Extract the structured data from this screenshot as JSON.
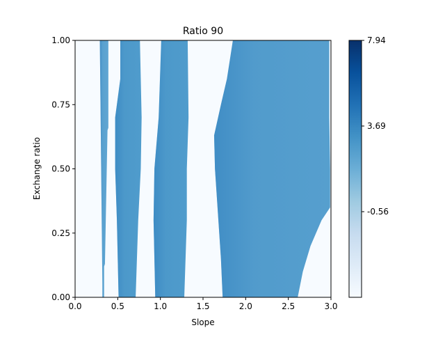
{
  "chart_data": {
    "type": "heatmap",
    "title": "Ratio 90",
    "xlabel": "Slope",
    "ylabel": "Exchange ratio",
    "xlim": [
      0.0,
      3.0
    ],
    "ylim": [
      0.0,
      1.0
    ],
    "xticks": [
      "0.0",
      "0.5",
      "1.0",
      "1.5",
      "2.0",
      "2.5",
      "3.0"
    ],
    "yticks": [
      "0.00",
      "0.25",
      "0.50",
      "0.75",
      "1.00"
    ],
    "colorbar": {
      "min": -4.81,
      "max": 7.94,
      "ticks": [
        "7.94",
        "3.69",
        "-0.56"
      ],
      "tick_values": [
        7.94,
        3.69,
        -0.56
      ],
      "colormap": "Blues"
    },
    "regions": [
      {
        "left_edge": [
          [
            0.0,
            0.32
          ],
          [
            0.05,
            0.32
          ],
          [
            1.0,
            0.29
          ]
        ],
        "right_edge": [
          [
            0.0,
            0.34
          ],
          [
            0.12,
            0.34
          ],
          [
            0.13,
            0.35
          ],
          [
            0.65,
            0.38
          ],
          [
            0.66,
            0.39
          ],
          [
            1.0,
            0.39
          ]
        ],
        "value": 2.0
      },
      {
        "left_edge": [
          [
            0.0,
            0.51
          ],
          [
            0.3,
            0.49
          ],
          [
            0.5,
            0.47
          ],
          [
            0.7,
            0.47
          ],
          [
            0.85,
            0.53
          ],
          [
            1.0,
            0.53
          ]
        ],
        "right_edge": [
          [
            0.0,
            0.71
          ],
          [
            0.3,
            0.74
          ],
          [
            0.5,
            0.77
          ],
          [
            0.7,
            0.78
          ],
          [
            0.85,
            0.77
          ],
          [
            1.0,
            0.76
          ]
        ],
        "value": 2.6
      },
      {
        "left_edge": [
          [
            0.0,
            0.94
          ],
          [
            0.3,
            0.92
          ],
          [
            0.5,
            0.93
          ],
          [
            0.7,
            0.98
          ],
          [
            0.9,
            1.0
          ],
          [
            1.0,
            1.01
          ]
        ],
        "right_edge": [
          [
            0.0,
            1.28
          ],
          [
            0.3,
            1.31
          ],
          [
            0.5,
            1.31
          ],
          [
            0.7,
            1.33
          ],
          [
            1.0,
            1.32
          ]
        ],
        "value": 2.6
      },
      {
        "left_edge": [
          [
            0.0,
            1.73
          ],
          [
            0.15,
            1.71
          ],
          [
            0.3,
            1.68
          ],
          [
            0.5,
            1.64
          ],
          [
            0.63,
            1.63
          ],
          [
            0.75,
            1.71
          ],
          [
            0.85,
            1.78
          ],
          [
            1.0,
            1.85
          ]
        ],
        "right_edge": [
          [
            0.0,
            2.61
          ],
          [
            0.1,
            2.67
          ],
          [
            0.2,
            2.76
          ],
          [
            0.3,
            2.89
          ],
          [
            0.35,
            2.99
          ],
          [
            0.5,
            2.99
          ],
          [
            0.7,
            2.98
          ],
          [
            0.85,
            2.98
          ],
          [
            1.0,
            2.98
          ]
        ],
        "value": 2.4
      }
    ]
  }
}
